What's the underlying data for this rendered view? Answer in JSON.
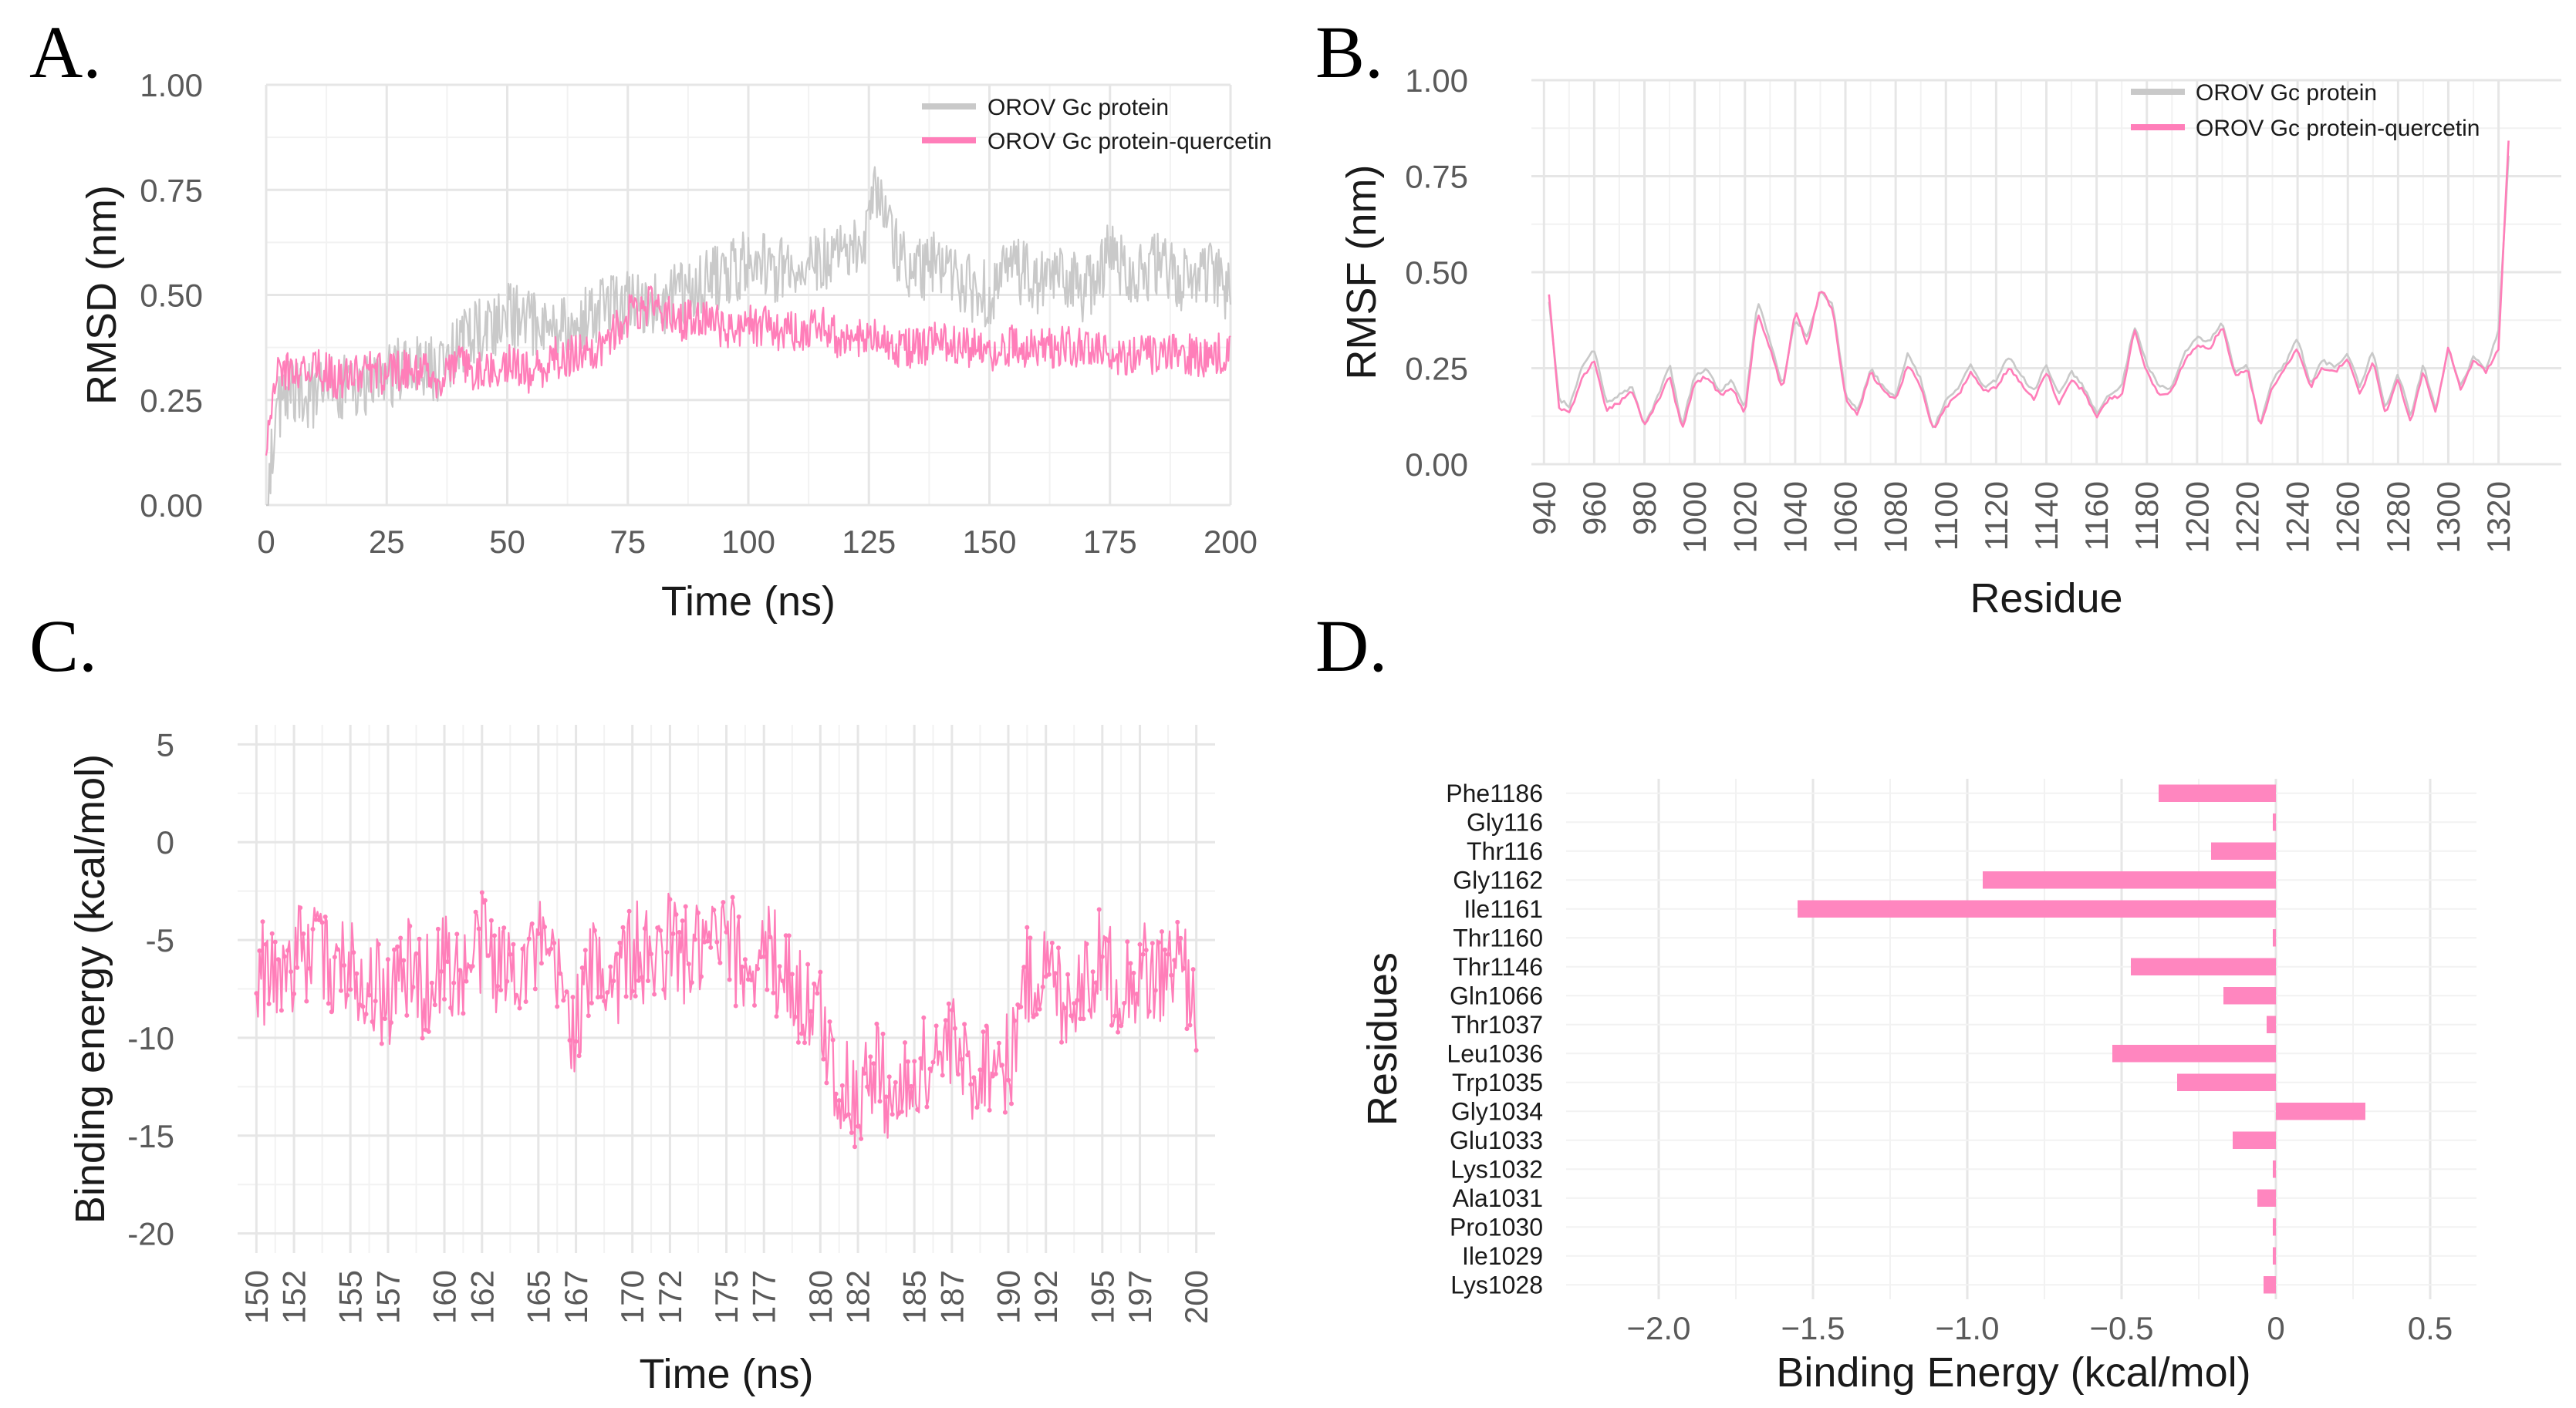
{
  "chart_data": [
    {
      "panel": "A.",
      "type": "line",
      "xlabel": "Time (ns)",
      "ylabel": "RMSD (nm)",
      "xlim": [
        0,
        200
      ],
      "ylim": [
        0,
        1.0
      ],
      "xticks": [
        "0",
        "25",
        "50",
        "75",
        "100",
        "125",
        "150",
        "175",
        "200"
      ],
      "yticks": [
        "0.00",
        "0.25",
        "0.50",
        "0.75",
        "1.00"
      ],
      "legend_position": "top-right",
      "grid": true,
      "series": [
        {
          "name": "OROV Gc protein",
          "color": "#c9c9c9",
          "x": [
            0,
            2,
            5,
            10,
            15,
            20,
            25,
            30,
            35,
            40,
            45,
            50,
            55,
            60,
            65,
            70,
            75,
            80,
            85,
            90,
            95,
            100,
            105,
            110,
            115,
            120,
            125,
            127,
            130,
            135,
            140,
            145,
            150,
            155,
            160,
            165,
            170,
            175,
            180,
            185,
            190,
            195,
            200
          ],
          "values": [
            0.0,
            0.22,
            0.27,
            0.26,
            0.28,
            0.27,
            0.3,
            0.34,
            0.32,
            0.38,
            0.42,
            0.45,
            0.43,
            0.41,
            0.44,
            0.46,
            0.48,
            0.47,
            0.5,
            0.52,
            0.55,
            0.58,
            0.56,
            0.57,
            0.59,
            0.6,
            0.66,
            0.78,
            0.62,
            0.55,
            0.58,
            0.52,
            0.5,
            0.57,
            0.52,
            0.55,
            0.51,
            0.6,
            0.55,
            0.57,
            0.53,
            0.56,
            0.5
          ]
        },
        {
          "name": "OROV Gc protein-quercetin",
          "color": "#ff7eb9",
          "x": [
            0,
            2,
            5,
            10,
            15,
            20,
            25,
            30,
            35,
            40,
            45,
            50,
            55,
            60,
            65,
            70,
            75,
            80,
            85,
            90,
            95,
            100,
            105,
            110,
            115,
            120,
            125,
            130,
            135,
            140,
            145,
            150,
            155,
            160,
            165,
            170,
            175,
            180,
            185,
            190,
            195,
            200
          ],
          "values": [
            0.15,
            0.3,
            0.32,
            0.33,
            0.3,
            0.32,
            0.31,
            0.33,
            0.3,
            0.33,
            0.32,
            0.34,
            0.31,
            0.35,
            0.36,
            0.38,
            0.45,
            0.48,
            0.44,
            0.44,
            0.42,
            0.43,
            0.42,
            0.41,
            0.44,
            0.38,
            0.4,
            0.38,
            0.37,
            0.39,
            0.38,
            0.36,
            0.38,
            0.37,
            0.38,
            0.37,
            0.36,
            0.36,
            0.35,
            0.36,
            0.35,
            0.37
          ]
        }
      ]
    },
    {
      "panel": "B.",
      "type": "line",
      "xlabel": "Residue",
      "ylabel": "RMSF (nm)",
      "xlim": [
        935,
        1345
      ],
      "ylim": [
        0,
        1.0
      ],
      "xticks": [
        "940",
        "960",
        "980",
        "1000",
        "1020",
        "1040",
        "1060",
        "1080",
        "1100",
        "1120",
        "1140",
        "1160",
        "1180",
        "1200",
        "1220",
        "1240",
        "1260",
        "1280",
        "1300",
        "1320"
      ],
      "yticks": [
        "0.00",
        "0.25",
        "0.50",
        "0.75",
        "1.00"
      ],
      "legend_position": "top-right",
      "grid": true,
      "series": [
        {
          "name": "OROV Gc protein",
          "color": "#c9c9c9",
          "x": [
            942,
            946,
            950,
            955,
            960,
            965,
            970,
            975,
            980,
            985,
            990,
            995,
            1000,
            1005,
            1010,
            1015,
            1020,
            1025,
            1030,
            1035,
            1040,
            1045,
            1050,
            1055,
            1060,
            1065,
            1070,
            1075,
            1080,
            1085,
            1090,
            1095,
            1100,
            1105,
            1110,
            1115,
            1120,
            1125,
            1130,
            1135,
            1140,
            1145,
            1150,
            1155,
            1160,
            1165,
            1170,
            1175,
            1180,
            1185,
            1190,
            1195,
            1200,
            1205,
            1210,
            1215,
            1220,
            1225,
            1230,
            1235,
            1240,
            1245,
            1250,
            1255,
            1260,
            1265,
            1270,
            1275,
            1280,
            1285,
            1290,
            1295,
            1300,
            1305,
            1310,
            1315,
            1320,
            1324
          ],
          "values": [
            0.42,
            0.17,
            0.15,
            0.25,
            0.3,
            0.16,
            0.18,
            0.2,
            0.1,
            0.17,
            0.26,
            0.1,
            0.23,
            0.25,
            0.19,
            0.22,
            0.14,
            0.43,
            0.32,
            0.2,
            0.38,
            0.33,
            0.45,
            0.42,
            0.18,
            0.14,
            0.25,
            0.2,
            0.18,
            0.29,
            0.22,
            0.09,
            0.17,
            0.2,
            0.26,
            0.2,
            0.22,
            0.28,
            0.23,
            0.19,
            0.26,
            0.18,
            0.24,
            0.2,
            0.13,
            0.18,
            0.2,
            0.36,
            0.26,
            0.2,
            0.2,
            0.29,
            0.33,
            0.32,
            0.37,
            0.24,
            0.26,
            0.1,
            0.22,
            0.26,
            0.33,
            0.21,
            0.27,
            0.25,
            0.29,
            0.2,
            0.3,
            0.14,
            0.24,
            0.12,
            0.26,
            0.14,
            0.3,
            0.2,
            0.28,
            0.25,
            0.35,
            0.8
          ]
        },
        {
          "name": "OROV Gc protein-quercetin",
          "color": "#ff7eb9",
          "x": [
            942,
            946,
            950,
            955,
            960,
            965,
            970,
            975,
            980,
            985,
            990,
            995,
            1000,
            1005,
            1010,
            1015,
            1020,
            1025,
            1030,
            1035,
            1040,
            1045,
            1050,
            1055,
            1060,
            1065,
            1070,
            1075,
            1080,
            1085,
            1090,
            1095,
            1100,
            1105,
            1110,
            1115,
            1120,
            1125,
            1130,
            1135,
            1140,
            1145,
            1150,
            1155,
            1160,
            1165,
            1170,
            1175,
            1180,
            1185,
            1190,
            1195,
            1200,
            1205,
            1210,
            1215,
            1220,
            1225,
            1230,
            1235,
            1240,
            1245,
            1250,
            1255,
            1260,
            1265,
            1270,
            1275,
            1280,
            1285,
            1290,
            1295,
            1300,
            1305,
            1310,
            1315,
            1320,
            1324
          ],
          "values": [
            0.44,
            0.15,
            0.13,
            0.22,
            0.27,
            0.14,
            0.16,
            0.19,
            0.1,
            0.16,
            0.23,
            0.09,
            0.21,
            0.23,
            0.18,
            0.2,
            0.13,
            0.4,
            0.3,
            0.19,
            0.4,
            0.31,
            0.46,
            0.4,
            0.17,
            0.13,
            0.24,
            0.19,
            0.17,
            0.26,
            0.2,
            0.09,
            0.15,
            0.18,
            0.24,
            0.19,
            0.2,
            0.25,
            0.21,
            0.17,
            0.24,
            0.16,
            0.22,
            0.19,
            0.12,
            0.17,
            0.18,
            0.35,
            0.24,
            0.18,
            0.19,
            0.27,
            0.31,
            0.3,
            0.36,
            0.23,
            0.25,
            0.1,
            0.2,
            0.25,
            0.3,
            0.2,
            0.25,
            0.24,
            0.28,
            0.18,
            0.27,
            0.13,
            0.22,
            0.11,
            0.24,
            0.13,
            0.31,
            0.19,
            0.27,
            0.24,
            0.3,
            0.84
          ]
        }
      ]
    },
    {
      "panel": "C.",
      "type": "line",
      "xlabel": "Time (ns)",
      "ylabel": "Binding energy (kcal/mol)",
      "xlim": [
        149,
        201
      ],
      "ylim": [
        -21,
        6
      ],
      "xticks": [
        "150",
        "152",
        "155",
        "157",
        "160",
        "162",
        "165",
        "167",
        "170",
        "172",
        "175",
        "177",
        "180",
        "182",
        "185",
        "187",
        "190",
        "192",
        "195",
        "197",
        "200"
      ],
      "yticks": [
        "5",
        "0",
        "-5",
        "-10",
        "-15",
        "-20"
      ],
      "grid": true,
      "series": [
        {
          "color": "#ff7eb9",
          "x": [
            150,
            151,
            152,
            153,
            154,
            155,
            156,
            157,
            158,
            159,
            160,
            161,
            162,
            163,
            164,
            165,
            166,
            167,
            168,
            169,
            170,
            171,
            172,
            173,
            174,
            175,
            176,
            177,
            178,
            179,
            180,
            181,
            182,
            183,
            184,
            185,
            186,
            187,
            188,
            189,
            190,
            191,
            192,
            193,
            194,
            195,
            196,
            197,
            198,
            199,
            200
          ],
          "values": [
            -6.5,
            -7.0,
            -6.0,
            -5.5,
            -6.5,
            -6.0,
            -7.0,
            -8.0,
            -6.5,
            -7.5,
            -6.0,
            -7.0,
            -5.0,
            -6.5,
            -6.0,
            -5.5,
            -7.0,
            -9.5,
            -6.0,
            -7.0,
            -5.5,
            -6.5,
            -5.0,
            -6.0,
            -5.5,
            -5.0,
            -6.5,
            -5.5,
            -6.5,
            -8.0,
            -9.0,
            -12.5,
            -13.0,
            -11.5,
            -13.5,
            -12.0,
            -11.0,
            -10.5,
            -12.0,
            -11.0,
            -11.5,
            -7.0,
            -6.5,
            -8.0,
            -7.0,
            -6.0,
            -7.5,
            -6.5,
            -7.0,
            -6.0,
            -8.0
          ]
        }
      ]
    },
    {
      "panel": "D.",
      "type": "bar",
      "orientation": "horizontal",
      "xlabel": "Binding Energy (kcal/mol)",
      "ylabel": "Residues",
      "xlim": [
        -2.3,
        0.65
      ],
      "xticks": [
        "−2.0",
        "−1.5",
        "−1.0",
        "−0.5",
        "0",
        "0.5"
      ],
      "xtick_values": [
        -2.0,
        -1.5,
        -1.0,
        -0.5,
        0,
        0.5
      ],
      "grid": true,
      "color": "#ff86bf",
      "categories": [
        "Phe1186",
        "Gly116",
        "Thr116",
        "Gly1162",
        "Ile1161",
        "Thr1160",
        "Thr1146",
        "Gln1066",
        "Thr1037",
        "Leu1036",
        "Trp1035",
        "Gly1034",
        "Glu1033",
        "Lys1032",
        "Ala1031",
        "Pro1030",
        "Ile1029",
        "Lys1028"
      ],
      "values": [
        -0.38,
        -0.01,
        -0.21,
        -0.95,
        -1.55,
        -0.01,
        -0.47,
        -0.17,
        -0.03,
        -0.53,
        -0.32,
        0.29,
        -0.14,
        -0.01,
        -0.06,
        -0.01,
        -0.01,
        -0.04
      ]
    }
  ],
  "legend": {
    "a_label1": "OROV Gc protein",
    "a_label2": "OROV Gc protein-quercetin",
    "b_label1": "OROV Gc protein",
    "b_label2": "OROV Gc protein-quercetin"
  },
  "panel_labels": {
    "a": "A.",
    "b": "B.",
    "c": "C.",
    "d": "D."
  }
}
